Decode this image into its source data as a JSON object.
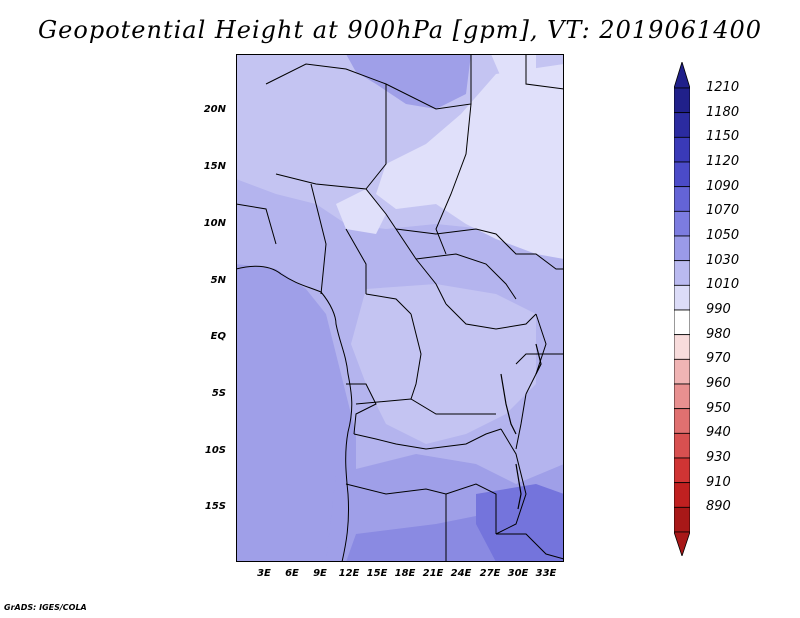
{
  "title": "Geopotential Height at 900hPa [gpm], VT: 2019061400",
  "credit": "GrADS: IGES/COLA",
  "map": {
    "lat_labels": [
      "20N",
      "15N",
      "10N",
      "5N",
      "EQ",
      "5S",
      "10S",
      "15S"
    ],
    "lon_labels": [
      "3E",
      "6E",
      "9E",
      "12E",
      "15E",
      "18E",
      "21E",
      "24E",
      "27E",
      "30E",
      "33E"
    ],
    "fill_colors": {
      "light": "#e0e0fa",
      "c1030": "#c4c4f2",
      "c1050": "#b4b4ee",
      "c1070": "#9f9fe8",
      "c1090": "#8a8ae2",
      "c1120": "#7474dc"
    }
  },
  "colorbar": {
    "labels": [
      "1210",
      "1180",
      "1150",
      "1120",
      "1090",
      "1070",
      "1050",
      "1030",
      "1010",
      "990",
      "980",
      "970",
      "960",
      "950",
      "940",
      "930",
      "910",
      "890"
    ],
    "colors": [
      "#20208a",
      "#2b2ba0",
      "#3a3ab8",
      "#4b4bc8",
      "#6464d6",
      "#7c7ce0",
      "#9a9ae8",
      "#babaf0",
      "#dcdcf8",
      "#ffffff",
      "#f8dcdc",
      "#f0b4b4",
      "#e89090",
      "#e07070",
      "#d85050",
      "#d03434",
      "#c02020",
      "#a81818"
    ]
  }
}
